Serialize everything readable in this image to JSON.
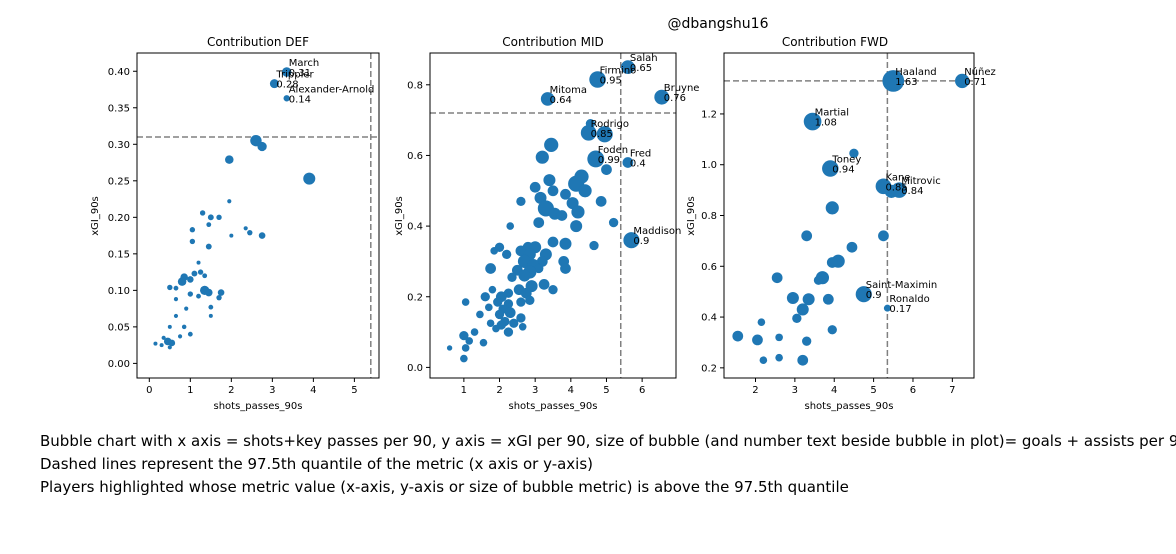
{
  "figure": {
    "watermark": "@dbangshu16",
    "caption_lines": [
      "Bubble chart with x axis = shots+key passes per 90, y axis = xGI per 90, size of bubble (and number text beside bubble in plot)= goals + assists per 90",
      "Dashed lines represent the 97.5th quantile of the metric (x axis or y-axis)",
      "Players highlighted whose metric value (x-axis, y-axis or size of bubble metric) is above the 97.5th quantile"
    ],
    "colors": {
      "bubble": "#1f77b4",
      "dashed_line": "#808080",
      "axes": "#000000"
    }
  },
  "chart_data": [
    {
      "type": "scatter",
      "title": "Contribution DEF",
      "xlabel": "shots_passes_90s",
      "ylabel": "xGI_90s",
      "xlim": [
        -0.3,
        5.6
      ],
      "ylim": [
        -0.02,
        0.425
      ],
      "xticks": [
        "0",
        "1",
        "2",
        "3",
        "4",
        "5"
      ],
      "yticks": [
        "0.00",
        "0.05",
        "0.10",
        "0.15",
        "0.20",
        "0.25",
        "0.30",
        "0.35",
        "0.40"
      ],
      "quantile_x": 5.4,
      "quantile_y": 0.31,
      "highlighted": [
        {
          "name": "March",
          "value_label": "0.31",
          "x": 3.35,
          "y": 0.399,
          "size": 0.31
        },
        {
          "name": "Trippier",
          "value_label": "0.28",
          "x": 3.05,
          "y": 0.383,
          "size": 0.28
        },
        {
          "name": "Alexander-Arnold",
          "value_label": "0.14",
          "x": 3.35,
          "y": 0.363,
          "size": 0.14
        }
      ],
      "points": [
        {
          "x": 3.9,
          "y": 0.253,
          "size": 0.5
        },
        {
          "x": 2.6,
          "y": 0.305,
          "size": 0.45
        },
        {
          "x": 2.75,
          "y": 0.297,
          "size": 0.3
        },
        {
          "x": 1.95,
          "y": 0.279,
          "size": 0.25
        },
        {
          "x": 1.95,
          "y": 0.222,
          "size": 0.06
        },
        {
          "x": 1.3,
          "y": 0.206,
          "size": 0.1
        },
        {
          "x": 1.7,
          "y": 0.2,
          "size": 0.1
        },
        {
          "x": 1.5,
          "y": 0.2,
          "size": 0.12
        },
        {
          "x": 1.45,
          "y": 0.19,
          "size": 0.08
        },
        {
          "x": 2.35,
          "y": 0.185,
          "size": 0.06
        },
        {
          "x": 1.05,
          "y": 0.183,
          "size": 0.1
        },
        {
          "x": 2.45,
          "y": 0.179,
          "size": 0.1
        },
        {
          "x": 2.75,
          "y": 0.175,
          "size": 0.15
        },
        {
          "x": 2.0,
          "y": 0.175,
          "size": 0.05
        },
        {
          "x": 1.05,
          "y": 0.167,
          "size": 0.1
        },
        {
          "x": 1.45,
          "y": 0.16,
          "size": 0.12
        },
        {
          "x": 1.2,
          "y": 0.138,
          "size": 0.05
        },
        {
          "x": 1.25,
          "y": 0.125,
          "size": 0.1
        },
        {
          "x": 1.1,
          "y": 0.123,
          "size": 0.12
        },
        {
          "x": 1.35,
          "y": 0.12,
          "size": 0.08
        },
        {
          "x": 0.85,
          "y": 0.118,
          "size": 0.2
        },
        {
          "x": 1.0,
          "y": 0.115,
          "size": 0.15
        },
        {
          "x": 0.8,
          "y": 0.112,
          "size": 0.25
        },
        {
          "x": 0.5,
          "y": 0.104,
          "size": 0.1
        },
        {
          "x": 0.65,
          "y": 0.103,
          "size": 0.08
        },
        {
          "x": 1.35,
          "y": 0.1,
          "size": 0.3
        },
        {
          "x": 1.45,
          "y": 0.097,
          "size": 0.2
        },
        {
          "x": 1.75,
          "y": 0.097,
          "size": 0.15
        },
        {
          "x": 1.0,
          "y": 0.095,
          "size": 0.1
        },
        {
          "x": 1.2,
          "y": 0.092,
          "size": 0.08
        },
        {
          "x": 1.7,
          "y": 0.09,
          "size": 0.1
        },
        {
          "x": 0.65,
          "y": 0.088,
          "size": 0.06
        },
        {
          "x": 1.5,
          "y": 0.077,
          "size": 0.08
        },
        {
          "x": 0.9,
          "y": 0.075,
          "size": 0.06
        },
        {
          "x": 0.65,
          "y": 0.065,
          "size": 0.06
        },
        {
          "x": 1.5,
          "y": 0.065,
          "size": 0.05
        },
        {
          "x": 0.85,
          "y": 0.05,
          "size": 0.07
        },
        {
          "x": 0.5,
          "y": 0.05,
          "size": 0.05
        },
        {
          "x": 1.0,
          "y": 0.04,
          "size": 0.08
        },
        {
          "x": 0.75,
          "y": 0.037,
          "size": 0.06
        },
        {
          "x": 0.35,
          "y": 0.035,
          "size": 0.06
        },
        {
          "x": 0.45,
          "y": 0.03,
          "size": 0.2
        },
        {
          "x": 0.55,
          "y": 0.028,
          "size": 0.15
        },
        {
          "x": 0.3,
          "y": 0.025,
          "size": 0.05
        },
        {
          "x": 0.5,
          "y": 0.022,
          "size": 0.06
        },
        {
          "x": 0.15,
          "y": 0.027,
          "size": 0.05
        }
      ]
    },
    {
      "type": "scatter",
      "title": "Contribution MID",
      "xlabel": "shots_passes_90s",
      "ylabel": "xGI_90s",
      "xlim": [
        0.05,
        6.95
      ],
      "ylim": [
        -0.03,
        0.89
      ],
      "xticks": [
        "1",
        "2",
        "3",
        "4",
        "5",
        "6"
      ],
      "yticks": [
        "0.0",
        "0.2",
        "0.4",
        "0.6",
        "0.8"
      ],
      "quantile_x": 5.4,
      "quantile_y": 0.72,
      "highlighted": [
        {
          "name": "Salah",
          "value_label": "0.65",
          "x": 5.6,
          "y": 0.85,
          "size": 0.65
        },
        {
          "name": "Firmino",
          "value_label": "0.95",
          "x": 4.75,
          "y": 0.815,
          "size": 0.95
        },
        {
          "name": "Bruyne",
          "value_label": "0.76",
          "x": 6.55,
          "y": 0.765,
          "size": 0.76
        },
        {
          "name": "Mitoma",
          "value_label": "0.64",
          "x": 3.35,
          "y": 0.76,
          "size": 0.64
        },
        {
          "name": "Rodrigo",
          "value_label": "0.85",
          "x": 4.5,
          "y": 0.664,
          "size": 0.85
        },
        {
          "name": "Foden",
          "value_label": "0.99",
          "x": 4.7,
          "y": 0.59,
          "size": 0.99
        },
        {
          "name": "Fred",
          "value_label": "0.4",
          "x": 5.6,
          "y": 0.58,
          "size": 0.4
        },
        {
          "name": "Maddison",
          "value_label": "0.9",
          "x": 5.7,
          "y": 0.36,
          "size": 0.9
        }
      ],
      "points": [
        {
          "x": 4.55,
          "y": 0.69,
          "size": 0.3
        },
        {
          "x": 4.95,
          "y": 0.66,
          "size": 0.9
        },
        {
          "x": 3.45,
          "y": 0.63,
          "size": 0.7
        },
        {
          "x": 3.2,
          "y": 0.595,
          "size": 0.6
        },
        {
          "x": 5.0,
          "y": 0.56,
          "size": 0.4
        },
        {
          "x": 4.3,
          "y": 0.54,
          "size": 0.7
        },
        {
          "x": 4.15,
          "y": 0.52,
          "size": 0.9
        },
        {
          "x": 4.4,
          "y": 0.5,
          "size": 0.6
        },
        {
          "x": 3.4,
          "y": 0.53,
          "size": 0.5
        },
        {
          "x": 3.0,
          "y": 0.51,
          "size": 0.4
        },
        {
          "x": 3.5,
          "y": 0.5,
          "size": 0.4
        },
        {
          "x": 3.85,
          "y": 0.49,
          "size": 0.4
        },
        {
          "x": 4.05,
          "y": 0.465,
          "size": 0.5
        },
        {
          "x": 3.15,
          "y": 0.48,
          "size": 0.5
        },
        {
          "x": 2.6,
          "y": 0.47,
          "size": 0.3
        },
        {
          "x": 4.85,
          "y": 0.47,
          "size": 0.4
        },
        {
          "x": 3.3,
          "y": 0.45,
          "size": 0.9
        },
        {
          "x": 3.55,
          "y": 0.435,
          "size": 0.5
        },
        {
          "x": 4.2,
          "y": 0.44,
          "size": 0.6
        },
        {
          "x": 3.75,
          "y": 0.43,
          "size": 0.4
        },
        {
          "x": 5.2,
          "y": 0.41,
          "size": 0.3
        },
        {
          "x": 3.1,
          "y": 0.41,
          "size": 0.4
        },
        {
          "x": 4.15,
          "y": 0.4,
          "size": 0.5
        },
        {
          "x": 2.3,
          "y": 0.4,
          "size": 0.2
        },
        {
          "x": 4.65,
          "y": 0.345,
          "size": 0.3
        },
        {
          "x": 3.85,
          "y": 0.35,
          "size": 0.5
        },
        {
          "x": 3.5,
          "y": 0.355,
          "size": 0.4
        },
        {
          "x": 2.8,
          "y": 0.34,
          "size": 0.4
        },
        {
          "x": 3.0,
          "y": 0.34,
          "size": 0.5
        },
        {
          "x": 2.0,
          "y": 0.34,
          "size": 0.3
        },
        {
          "x": 1.85,
          "y": 0.33,
          "size": 0.2
        },
        {
          "x": 2.6,
          "y": 0.33,
          "size": 0.4
        },
        {
          "x": 2.85,
          "y": 0.32,
          "size": 0.5
        },
        {
          "x": 2.2,
          "y": 0.32,
          "size": 0.3
        },
        {
          "x": 3.3,
          "y": 0.32,
          "size": 0.5
        },
        {
          "x": 3.2,
          "y": 0.3,
          "size": 0.4
        },
        {
          "x": 3.8,
          "y": 0.3,
          "size": 0.4
        },
        {
          "x": 2.7,
          "y": 0.3,
          "size": 0.6
        },
        {
          "x": 2.95,
          "y": 0.29,
          "size": 0.5
        },
        {
          "x": 3.1,
          "y": 0.28,
          "size": 0.3
        },
        {
          "x": 2.5,
          "y": 0.275,
          "size": 0.4
        },
        {
          "x": 2.85,
          "y": 0.27,
          "size": 0.6
        },
        {
          "x": 1.75,
          "y": 0.28,
          "size": 0.4
        },
        {
          "x": 3.85,
          "y": 0.28,
          "size": 0.4
        },
        {
          "x": 2.7,
          "y": 0.26,
          "size": 0.5
        },
        {
          "x": 2.35,
          "y": 0.255,
          "size": 0.3
        },
        {
          "x": 3.25,
          "y": 0.235,
          "size": 0.4
        },
        {
          "x": 2.9,
          "y": 0.23,
          "size": 0.5
        },
        {
          "x": 1.8,
          "y": 0.22,
          "size": 0.2
        },
        {
          "x": 2.55,
          "y": 0.22,
          "size": 0.4
        },
        {
          "x": 3.5,
          "y": 0.22,
          "size": 0.3
        },
        {
          "x": 2.25,
          "y": 0.21,
          "size": 0.3
        },
        {
          "x": 2.75,
          "y": 0.21,
          "size": 0.4
        },
        {
          "x": 2.05,
          "y": 0.2,
          "size": 0.4
        },
        {
          "x": 1.6,
          "y": 0.2,
          "size": 0.3
        },
        {
          "x": 2.85,
          "y": 0.19,
          "size": 0.3
        },
        {
          "x": 2.6,
          "y": 0.185,
          "size": 0.3
        },
        {
          "x": 1.95,
          "y": 0.185,
          "size": 0.3
        },
        {
          "x": 1.05,
          "y": 0.185,
          "size": 0.2
        },
        {
          "x": 2.25,
          "y": 0.18,
          "size": 0.3
        },
        {
          "x": 1.7,
          "y": 0.17,
          "size": 0.2
        },
        {
          "x": 2.1,
          "y": 0.165,
          "size": 0.3
        },
        {
          "x": 2.3,
          "y": 0.155,
          "size": 0.4
        },
        {
          "x": 2.0,
          "y": 0.15,
          "size": 0.3
        },
        {
          "x": 1.45,
          "y": 0.15,
          "size": 0.2
        },
        {
          "x": 2.6,
          "y": 0.14,
          "size": 0.3
        },
        {
          "x": 2.15,
          "y": 0.13,
          "size": 0.3
        },
        {
          "x": 2.4,
          "y": 0.125,
          "size": 0.3
        },
        {
          "x": 1.75,
          "y": 0.125,
          "size": 0.2
        },
        {
          "x": 2.05,
          "y": 0.12,
          "size": 0.3
        },
        {
          "x": 2.65,
          "y": 0.115,
          "size": 0.2
        },
        {
          "x": 1.9,
          "y": 0.11,
          "size": 0.2
        },
        {
          "x": 2.25,
          "y": 0.1,
          "size": 0.3
        },
        {
          "x": 1.3,
          "y": 0.1,
          "size": 0.2
        },
        {
          "x": 1.0,
          "y": 0.09,
          "size": 0.3
        },
        {
          "x": 1.15,
          "y": 0.075,
          "size": 0.2
        },
        {
          "x": 1.55,
          "y": 0.07,
          "size": 0.2
        },
        {
          "x": 1.05,
          "y": 0.055,
          "size": 0.2
        },
        {
          "x": 0.6,
          "y": 0.055,
          "size": 0.1
        },
        {
          "x": 1.0,
          "y": 0.025,
          "size": 0.2
        }
      ]
    },
    {
      "type": "scatter",
      "title": "Contribution FWD",
      "xlabel": "shots_passes_90s",
      "ylabel": "xGI_90s",
      "xlim": [
        1.2,
        7.55
      ],
      "ylim": [
        0.16,
        1.44
      ],
      "xticks": [
        "2",
        "3",
        "4",
        "5",
        "6",
        "7"
      ],
      "yticks": [
        "0.2",
        "0.4",
        "0.6",
        "0.8",
        "1.0",
        "1.2"
      ],
      "quantile_x": 5.35,
      "quantile_y": 1.33,
      "highlighted": [
        {
          "name": "Haaland",
          "value_label": "1.63",
          "x": 5.5,
          "y": 1.33,
          "size": 1.63
        },
        {
          "name": "Núñez",
          "value_label": "0.71",
          "x": 7.25,
          "y": 1.33,
          "size": 0.71
        },
        {
          "name": "Martial",
          "value_label": "1.08",
          "x": 3.45,
          "y": 1.17,
          "size": 1.08
        },
        {
          "name": "Toney",
          "value_label": "0.94",
          "x": 3.9,
          "y": 0.985,
          "size": 0.94
        },
        {
          "name": "Kane",
          "value_label": "0.85",
          "x": 5.25,
          "y": 0.915,
          "size": 0.85
        },
        {
          "name": "Mitrovic",
          "value_label": "0.84",
          "x": 5.65,
          "y": 0.9,
          "size": 0.84
        },
        {
          "name": "Saint-Maximin",
          "value_label": "0.9",
          "x": 4.75,
          "y": 0.49,
          "size": 0.9
        },
        {
          "name": "Ronaldo",
          "value_label": "0.17",
          "x": 5.35,
          "y": 0.435,
          "size": 0.17
        }
      ],
      "points": [
        {
          "x": 4.5,
          "y": 1.045,
          "size": 0.3
        },
        {
          "x": 5.45,
          "y": 0.895,
          "size": 0.6
        },
        {
          "x": 3.95,
          "y": 0.83,
          "size": 0.6
        },
        {
          "x": 3.3,
          "y": 0.72,
          "size": 0.4
        },
        {
          "x": 5.25,
          "y": 0.72,
          "size": 0.4
        },
        {
          "x": 4.45,
          "y": 0.675,
          "size": 0.4
        },
        {
          "x": 4.1,
          "y": 0.62,
          "size": 0.6
        },
        {
          "x": 3.95,
          "y": 0.615,
          "size": 0.4
        },
        {
          "x": 2.55,
          "y": 0.555,
          "size": 0.4
        },
        {
          "x": 3.7,
          "y": 0.555,
          "size": 0.6
        },
        {
          "x": 3.6,
          "y": 0.545,
          "size": 0.3
        },
        {
          "x": 2.95,
          "y": 0.475,
          "size": 0.5
        },
        {
          "x": 3.35,
          "y": 0.47,
          "size": 0.5
        },
        {
          "x": 3.85,
          "y": 0.47,
          "size": 0.4
        },
        {
          "x": 3.2,
          "y": 0.43,
          "size": 0.5
        },
        {
          "x": 3.05,
          "y": 0.395,
          "size": 0.3
        },
        {
          "x": 2.15,
          "y": 0.38,
          "size": 0.2
        },
        {
          "x": 3.95,
          "y": 0.35,
          "size": 0.3
        },
        {
          "x": 1.55,
          "y": 0.325,
          "size": 0.4
        },
        {
          "x": 2.6,
          "y": 0.32,
          "size": 0.2
        },
        {
          "x": 2.05,
          "y": 0.31,
          "size": 0.4
        },
        {
          "x": 3.3,
          "y": 0.305,
          "size": 0.3
        },
        {
          "x": 3.2,
          "y": 0.23,
          "size": 0.4
        },
        {
          "x": 2.6,
          "y": 0.24,
          "size": 0.2
        },
        {
          "x": 2.2,
          "y": 0.23,
          "size": 0.2
        }
      ]
    }
  ]
}
